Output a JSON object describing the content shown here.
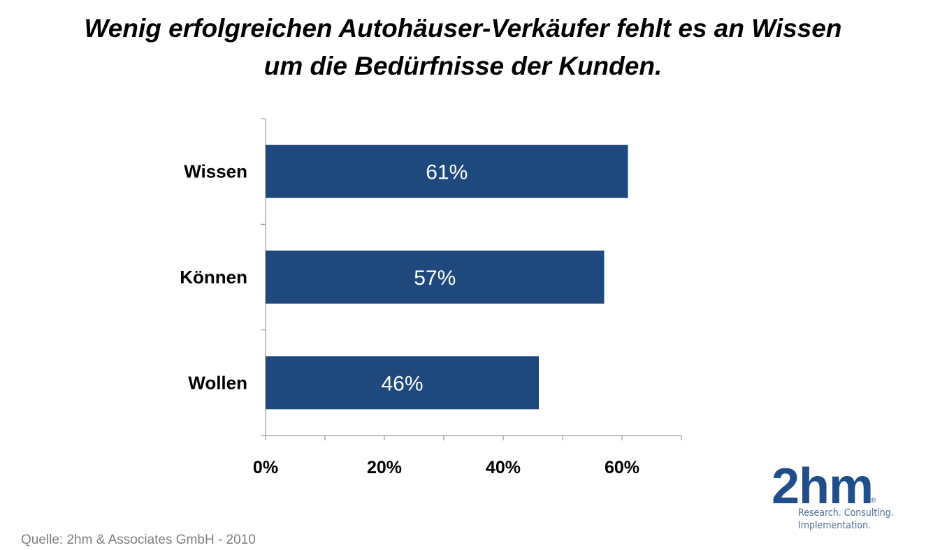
{
  "title_lines": [
    "Wenig erfolgreichen Autohäuser-Verkäufer fehlt es an Wissen",
    "um die Bedürfnisse der Kunden."
  ],
  "source": "Quelle: 2hm  & Associates GmbH - 2010",
  "logo": {
    "text": "2hm",
    "registered": "®",
    "tagline_1": "Research. Consulting.",
    "tagline_2": "Implementation."
  },
  "colors": {
    "bar": "#1f497d",
    "bar_label": "#ffffff",
    "axis": "#868686",
    "text": "#000000"
  },
  "chart_data": {
    "type": "bar",
    "orientation": "horizontal",
    "categories": [
      "Wissen",
      "Können",
      "Wollen"
    ],
    "values": [
      61,
      57,
      46
    ],
    "data_labels": [
      "61%",
      "57%",
      "46%"
    ],
    "xlim": [
      0,
      70
    ],
    "x_ticks": [
      0,
      20,
      40,
      60
    ],
    "x_tick_labels": [
      "0%",
      "20%",
      "40%",
      "60%"
    ],
    "grid": false
  }
}
